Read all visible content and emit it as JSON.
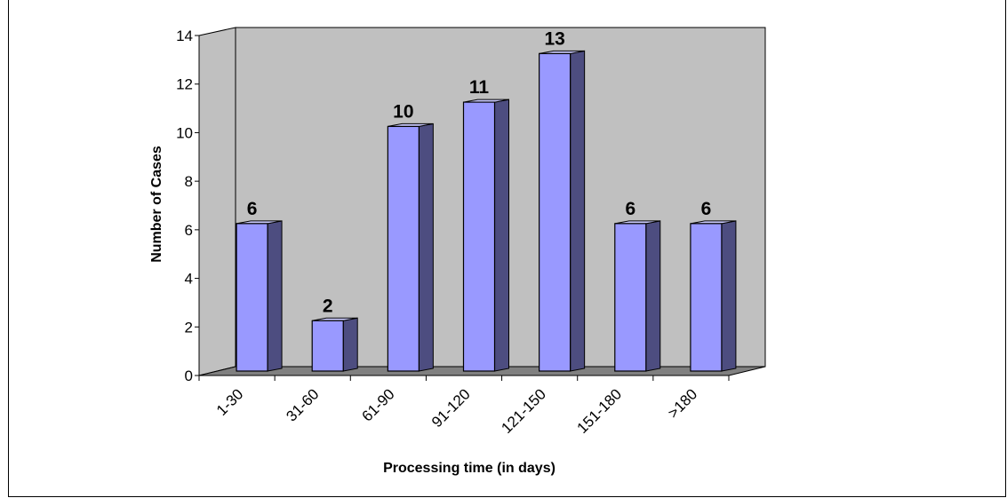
{
  "chart_data": {
    "type": "bar",
    "categories": [
      "1-30",
      "31-60",
      "61-90",
      "91-120",
      "121-150",
      "151-180",
      ">180"
    ],
    "values": [
      6,
      2,
      10,
      11,
      13,
      6,
      6
    ],
    "data_labels": [
      "6",
      "2",
      "10",
      "11",
      "13",
      "6",
      "6"
    ],
    "title": "",
    "xlabel": "Processing time (in days)",
    "ylabel": "Number of Cases",
    "ylim": [
      0,
      14
    ],
    "yticks": [
      0,
      2,
      4,
      6,
      8,
      10,
      12,
      14
    ],
    "ytick_labels": [
      "0",
      "2",
      "4",
      "6",
      "8",
      "10",
      "12",
      "14"
    ],
    "grid": false,
    "legend": "none",
    "style": "3d-column",
    "colors": {
      "bar_front": "#9999ff",
      "bar_side": "#4d4d80",
      "bar_top": "#ccccff",
      "back_wall": "#c0c0c0",
      "floor": "#808080"
    }
  }
}
